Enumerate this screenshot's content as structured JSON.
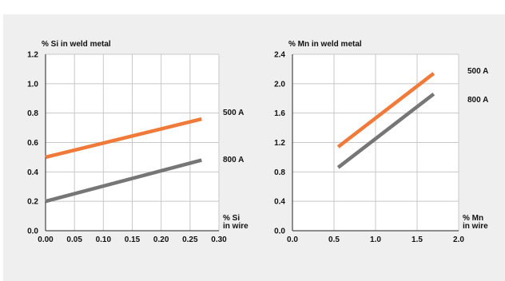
{
  "chart_data": [
    {
      "type": "line",
      "ylabel": "% Si in weld metal",
      "xlabel": [
        "% Si",
        "in wire"
      ],
      "xlim": [
        0,
        0.3
      ],
      "ylim": [
        0,
        1.2
      ],
      "x_ticks": [
        "0.00",
        "0.05",
        "0.10",
        "0.15",
        "0.20",
        "0.25",
        "0.30"
      ],
      "y_ticks": [
        "0.0",
        "0.2",
        "0.4",
        "0.6",
        "0.8",
        "1.0",
        "1.2"
      ],
      "grid": true,
      "series": [
        {
          "name": "500 A",
          "color": "#f07a3a",
          "x": [
            0.0,
            0.27
          ],
          "y": [
            0.5,
            0.76
          ]
        },
        {
          "name": "800 A",
          "color": "#767676",
          "x": [
            0.0,
            0.27
          ],
          "y": [
            0.2,
            0.48
          ]
        }
      ]
    },
    {
      "type": "line",
      "ylabel": "% Mn in weld metal",
      "xlabel": [
        "% Mn",
        "in wire"
      ],
      "xlim": [
        0,
        2.0
      ],
      "ylim": [
        0,
        2.4
      ],
      "x_ticks": [
        "0.0",
        "0.5",
        "1.0",
        "1.5",
        "2.0"
      ],
      "y_ticks": [
        "0.0",
        "0.4",
        "0.8",
        "1.2",
        "1.6",
        "2.0",
        "2.4"
      ],
      "grid": true,
      "series": [
        {
          "name": "500 A",
          "color": "#f07a3a",
          "x": [
            0.55,
            1.7
          ],
          "y": [
            1.14,
            2.14
          ]
        },
        {
          "name": "800 A",
          "color": "#767676",
          "x": [
            0.55,
            1.7
          ],
          "y": [
            0.86,
            1.86
          ]
        }
      ]
    }
  ]
}
